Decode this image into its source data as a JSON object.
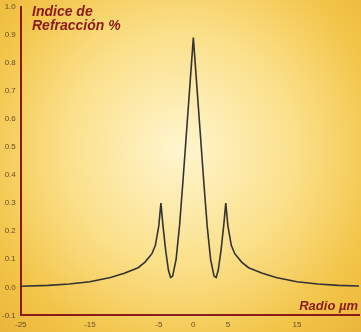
{
  "chart_data": {
    "type": "line",
    "y_label": "Indice de Refracción %",
    "x_label": "Radio µm",
    "x": [
      -25,
      -21,
      -18,
      -15,
      -12,
      -10,
      -8,
      -7,
      -6,
      -5.5,
      -5,
      -4.7,
      -4.4,
      -4,
      -3.6,
      -3.3,
      -3,
      -2.5,
      -2,
      -1.5,
      -1,
      -0.5,
      0,
      0.5,
      1,
      1.5,
      2,
      2.5,
      3,
      3.3,
      3.6,
      4,
      4.4,
      4.7,
      5,
      5.5,
      6,
      7,
      8,
      10,
      12,
      15,
      18,
      21,
      24
    ],
    "values": [
      0.004,
      0.007,
      0.012,
      0.02,
      0.035,
      0.05,
      0.07,
      0.09,
      0.12,
      0.15,
      0.22,
      0.3,
      0.22,
      0.13,
      0.06,
      0.035,
      0.04,
      0.1,
      0.22,
      0.38,
      0.55,
      0.72,
      0.89,
      0.72,
      0.55,
      0.38,
      0.22,
      0.1,
      0.04,
      0.035,
      0.06,
      0.13,
      0.22,
      0.3,
      0.22,
      0.15,
      0.12,
      0.09,
      0.07,
      0.05,
      0.035,
      0.02,
      0.012,
      0.007,
      0.005
    ],
    "color": "#333333",
    "xlim": [
      -25,
      24
    ],
    "xticks": [
      -25,
      -15,
      -5,
      0,
      5,
      15
    ],
    "ylim": [
      -0.1,
      1.0
    ],
    "yticks": [
      -0.1,
      {
        "value": 0,
        "label": "0.0"
      },
      0.1,
      0.2,
      0.3,
      0.4,
      0.5,
      0.6,
      0.7,
      0.8,
      0.9,
      {
        "value": 1,
        "label": "1.0"
      }
    ],
    "grid": false
  }
}
